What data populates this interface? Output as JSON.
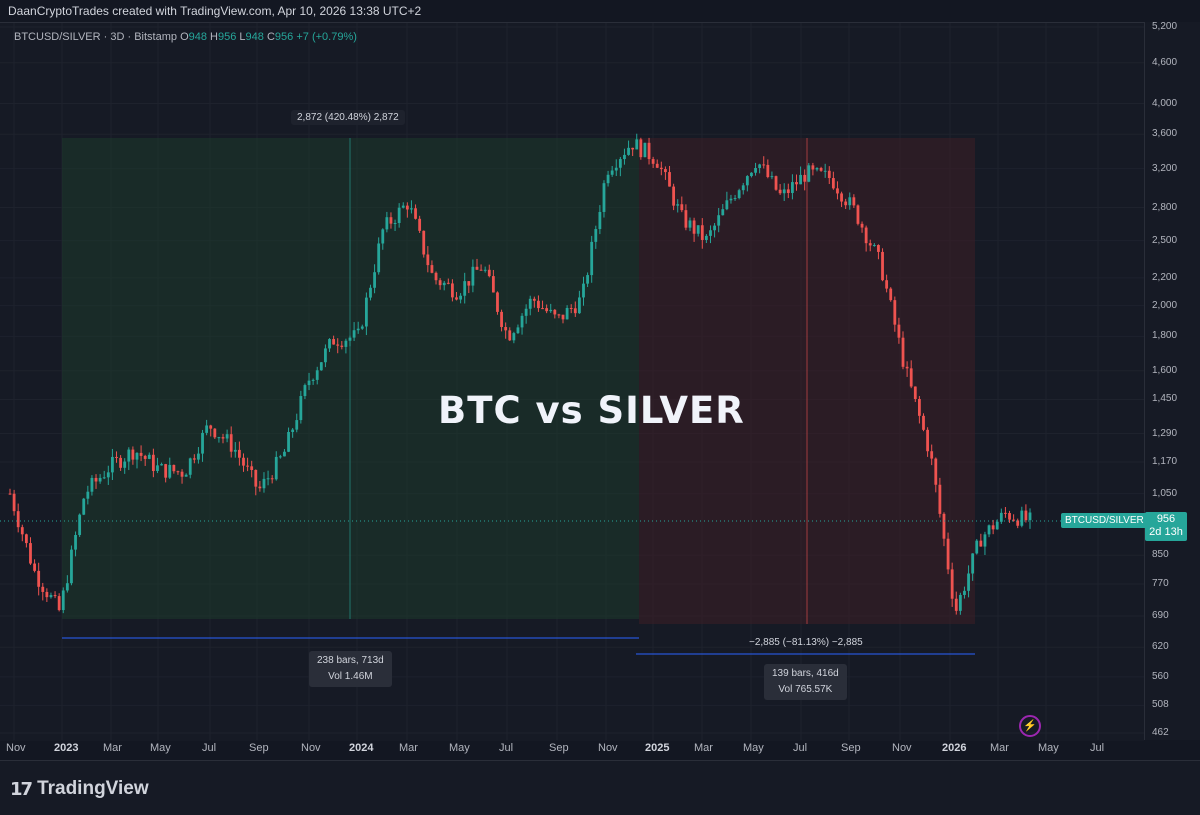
{
  "header": {
    "attribution": "DaanCryptoTrades created with TradingView.com, Apr 10, 2026 13:38 UTC+2"
  },
  "legend": {
    "symbol": "BTCUSD/SILVER · 3D · Bitstamp",
    "o_label": "O",
    "o_value": "948",
    "h_label": "H",
    "h_value": "956",
    "l_label": "L",
    "l_value": "948",
    "c_label": "C",
    "c_value": "956",
    "change": "+7 (+0.79%)"
  },
  "overlay_title": "BTC vs SILVER",
  "price_tag": {
    "price": "956",
    "countdown": "2d 13h",
    "symbol": "BTCUSD/SILVER"
  },
  "measures": [
    {
      "top_label": "2,872 (420.48%) 2,872",
      "bars": "238 bars, 713d",
      "vol": "Vol 1.46M"
    },
    {
      "top_label": "−2,885 (−81.13%) −2,885",
      "bars": "139 bars, 416d",
      "vol": "Vol 765.57K"
    }
  ],
  "chart_data": {
    "type": "line",
    "title": "",
    "series": [
      {
        "name": "BTCUSD/SILVER",
        "x": [
          "2022-11",
          "2022-12",
          "2023-01",
          "2023-02",
          "2023-03",
          "2023-04",
          "2023-05",
          "2023-06",
          "2023-07",
          "2023-08",
          "2023-09",
          "2023-10",
          "2023-11",
          "2023-12",
          "2024-01",
          "2024-02",
          "2024-03",
          "2024-04",
          "2024-05",
          "2024-06",
          "2024-07",
          "2024-08",
          "2024-09",
          "2024-10",
          "2024-11",
          "2024-12",
          "2025-01",
          "2025-02",
          "2025-03",
          "2025-04",
          "2025-05",
          "2025-06",
          "2025-07",
          "2025-08",
          "2025-09",
          "2025-10",
          "2025-11",
          "2025-12",
          "2026-01",
          "2026-02",
          "2026-03",
          "2026-04"
        ],
        "values": [
          1050,
          800,
          700,
          1050,
          1150,
          1220,
          1140,
          1130,
          1330,
          1230,
          1060,
          1200,
          1550,
          1780,
          1800,
          2600,
          2850,
          2200,
          2100,
          2300,
          1800,
          2050,
          1900,
          2050,
          3200,
          3500,
          3300,
          2700,
          2500,
          2900,
          3300,
          2900,
          3150,
          3100,
          2750,
          2300,
          1600,
          1200,
          700,
          900,
          980,
          956
        ]
      }
    ],
    "x_ticks": [
      "Nov",
      "2023",
      "Mar",
      "May",
      "Jul",
      "Sep",
      "Nov",
      "2024",
      "Mar",
      "May",
      "Jul",
      "Sep",
      "Nov",
      "2025",
      "Mar",
      "May",
      "Jul",
      "Sep",
      "Nov",
      "2026",
      "Mar",
      "May",
      "Jul"
    ],
    "y_ticks": [
      "5,200",
      "4,600",
      "4,000",
      "3,600",
      "3,200",
      "2,800",
      "2,500",
      "2,200",
      "2,000",
      "1,800",
      "1,600",
      "1,450",
      "1,290",
      "1,170",
      "1,050",
      "850",
      "770",
      "690",
      "620",
      "560",
      "508",
      "462"
    ],
    "yscale": "log",
    "ylim": [
      462,
      5200
    ],
    "colors": {
      "up": "#26a69a",
      "down": "#ef5350",
      "accent": "#26a69a",
      "measure_up": "#1d3a2b",
      "measure_down": "#3a1e26",
      "arrow": "#2962ff"
    }
  },
  "footer": {
    "logo_mark": "17",
    "logo_name": "TradingView"
  },
  "icons": {
    "lightning": "lightning-icon"
  }
}
